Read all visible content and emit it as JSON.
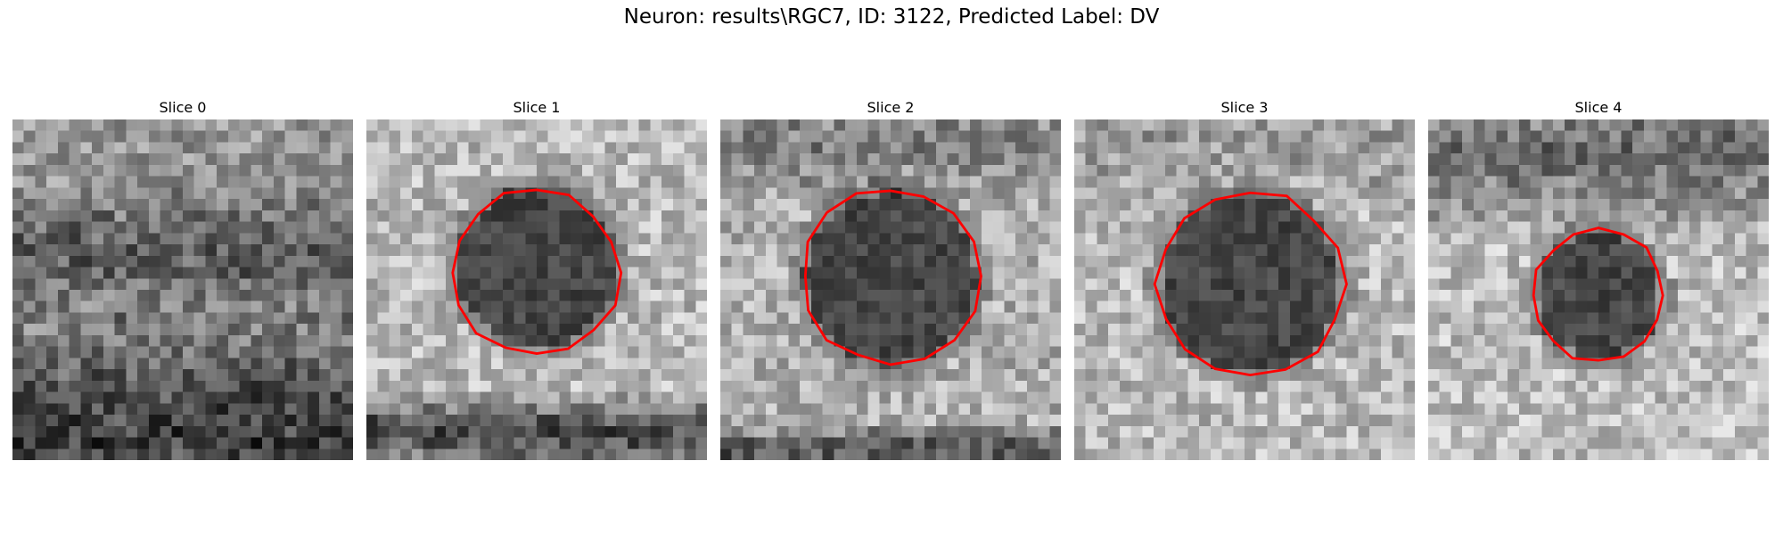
{
  "figure": {
    "suptitle": "Neuron: results\\RGC7, ID: 3122, Predicted Label: DV"
  },
  "panels": [
    {
      "title": "Slice 0"
    },
    {
      "title": "Slice 1"
    },
    {
      "title": "Slice 2"
    },
    {
      "title": "Slice 3"
    },
    {
      "title": "Slice 4"
    }
  ],
  "style": {
    "contour_color": "#ff0000",
    "colormap": "gray"
  }
}
